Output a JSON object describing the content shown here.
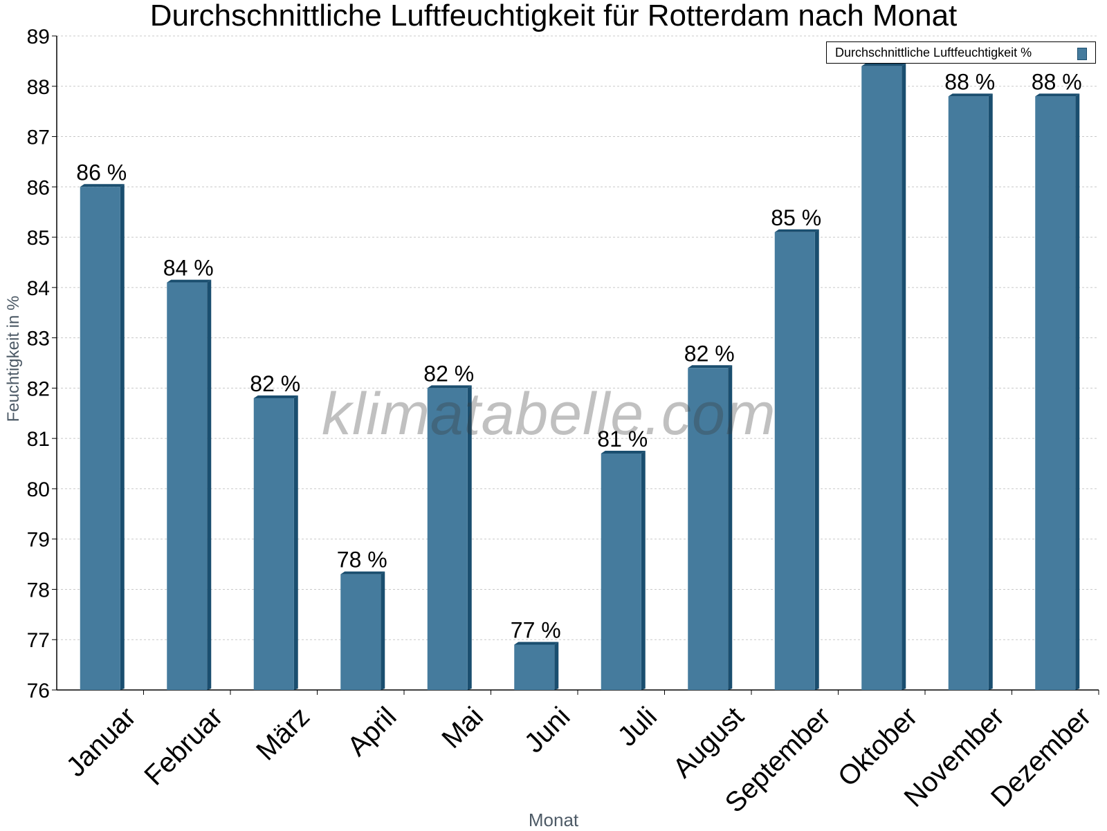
{
  "chart_data": {
    "type": "bar",
    "title": "Durchschnittliche Luftfeuchtigkeit für Rotterdam nach Monat",
    "xlabel": "Monat",
    "ylabel": "Feuchtigkeit in %",
    "categories": [
      "Januar",
      "Februar",
      "März",
      "April",
      "Mai",
      "Juni",
      "Juli",
      "August",
      "September",
      "Oktober",
      "November",
      "Dezember"
    ],
    "series": [
      {
        "name": "Durchschnittliche Luftfeuchtigkeit %",
        "values": [
          86.0,
          84.1,
          81.8,
          78.3,
          82.0,
          76.9,
          80.7,
          82.4,
          85.1,
          88.4,
          87.8,
          87.8
        ],
        "labels": [
          "86 %",
          "84 %",
          "82 %",
          "78 %",
          "82 %",
          "77 %",
          "81 %",
          "82 %",
          "85 %",
          "",
          "88 %",
          "88 %"
        ],
        "color": "#457b9d"
      }
    ],
    "ylim": [
      76,
      89
    ],
    "yticks": [
      "76",
      "77",
      "78",
      "79",
      "80",
      "81",
      "82",
      "83",
      "84",
      "85",
      "86",
      "87",
      "88",
      "89"
    ],
    "grid": true,
    "legend_position": "top-right"
  },
  "watermark": "klimatabelle.com",
  "colors": {
    "bar_face": "#457b9d",
    "bar_edge": "#1a4e6f",
    "grid": "#c8c8c8",
    "axis_title": "#4d5a66"
  }
}
